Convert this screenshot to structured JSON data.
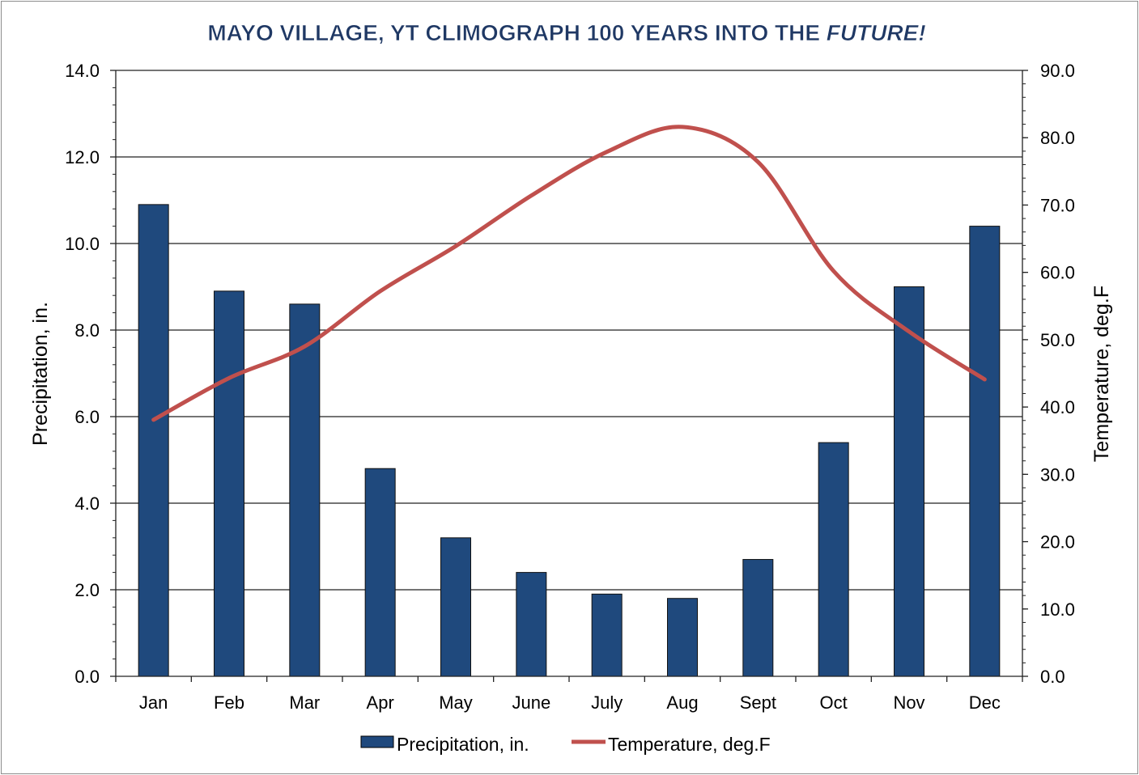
{
  "chart_data": {
    "type": "bar+line",
    "title": "MAYO VILLAGE, YT CLIMOGRAPH 100 YEARS INTO THE",
    "title_emphasis": "FUTURE!",
    "categories": [
      "Jan",
      "Feb",
      "Mar",
      "Apr",
      "May",
      "June",
      "July",
      "Aug",
      "Sept",
      "Oct",
      "Nov",
      "Dec"
    ],
    "series": [
      {
        "name": "Precipitation, in.",
        "type": "bar",
        "axis": "left",
        "color": "#1f497d",
        "values": [
          10.9,
          8.9,
          8.6,
          4.8,
          3.2,
          2.4,
          1.9,
          1.8,
          2.7,
          5.4,
          9.0,
          10.4
        ]
      },
      {
        "name": "Temperature, deg.F",
        "type": "line",
        "axis": "right",
        "color": "#c0504d",
        "smooth": true,
        "values": [
          38.1,
          44.3,
          49.0,
          57.2,
          63.9,
          71.4,
          77.9,
          81.6,
          76.4,
          60.2,
          51.2,
          44.1
        ]
      }
    ],
    "ylabel": "Precipitation, in.",
    "y2label": "Temperature, deg.F",
    "ylim": [
      0,
      14
    ],
    "y2lim": [
      0,
      90
    ],
    "yticks": [
      "0.0",
      "2.0",
      "4.0",
      "6.0",
      "8.0",
      "10.0",
      "12.0",
      "14.0"
    ],
    "y2ticks": [
      "0.0",
      "10.0",
      "20.0",
      "30.0",
      "40.0",
      "50.0",
      "60.0",
      "70.0",
      "80.0",
      "90.0"
    ],
    "grid": true,
    "legend": "bottom"
  }
}
